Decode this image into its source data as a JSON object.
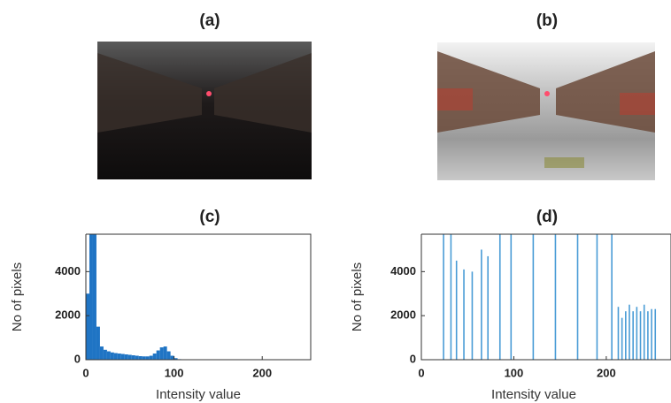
{
  "images": [
    {
      "title": "(a)"
    },
    {
      "title": "(b)"
    }
  ],
  "chart_data": [
    {
      "type": "histogram",
      "title": "(c)",
      "xlabel": "Intensity value",
      "ylabel": "No of pixels",
      "color": "#1f74c4",
      "bins": [
        0,
        4,
        8,
        12,
        16,
        20,
        24,
        28,
        32,
        36,
        40,
        44,
        48,
        52,
        56,
        60,
        64,
        68,
        72,
        76,
        80,
        84,
        88,
        92,
        96,
        100,
        104,
        108,
        112,
        116,
        120,
        124,
        128,
        132,
        136,
        140,
        144,
        148,
        152,
        156,
        160,
        164,
        168,
        172,
        176,
        180,
        184,
        188,
        192,
        196,
        200,
        204,
        208,
        212,
        216,
        220,
        224,
        228,
        232,
        236,
        240,
        244,
        248,
        252,
        256
      ],
      "values": [
        3000,
        5700,
        5700,
        1500,
        600,
        450,
        380,
        330,
        300,
        280,
        260,
        240,
        220,
        200,
        180,
        160,
        150,
        150,
        180,
        280,
        420,
        560,
        600,
        380,
        180,
        70,
        25,
        0,
        0,
        0,
        0,
        0,
        0,
        0,
        0,
        0,
        0,
        0,
        0,
        0,
        0,
        0,
        0,
        0,
        0,
        0,
        0,
        0,
        0,
        0,
        0,
        0,
        0,
        0,
        0,
        0,
        0,
        0,
        0,
        0,
        0,
        0,
        0,
        0
      ],
      "xlim": [
        0,
        255
      ],
      "ylim": [
        0,
        5700
      ],
      "xticks": [
        0,
        100,
        200
      ],
      "yticks": [
        0,
        2000,
        4000
      ]
    },
    {
      "type": "spike",
      "title": "(d)",
      "xlabel": "Intensity value",
      "ylabel": "No of pixels",
      "color": "#4a9cd6",
      "x": [
        24,
        32,
        38,
        46,
        55,
        65,
        72,
        85,
        97,
        121,
        145,
        169,
        190,
        206,
        213,
        217,
        221,
        225,
        229,
        233,
        237,
        241,
        245,
        249,
        253
      ],
      "values": [
        6000,
        6000,
        4500,
        4100,
        4000,
        5000,
        4700,
        6000,
        6000,
        6000,
        6000,
        6000,
        6000,
        6000,
        2400,
        1900,
        2200,
        2500,
        2200,
        2400,
        2200,
        2500,
        2200,
        2300,
        2300
      ],
      "xlim": [
        0,
        270
      ],
      "ylim": [
        0,
        5700
      ],
      "xticks": [
        0,
        100,
        200
      ],
      "yticks": [
        0,
        2000,
        4000
      ]
    }
  ]
}
